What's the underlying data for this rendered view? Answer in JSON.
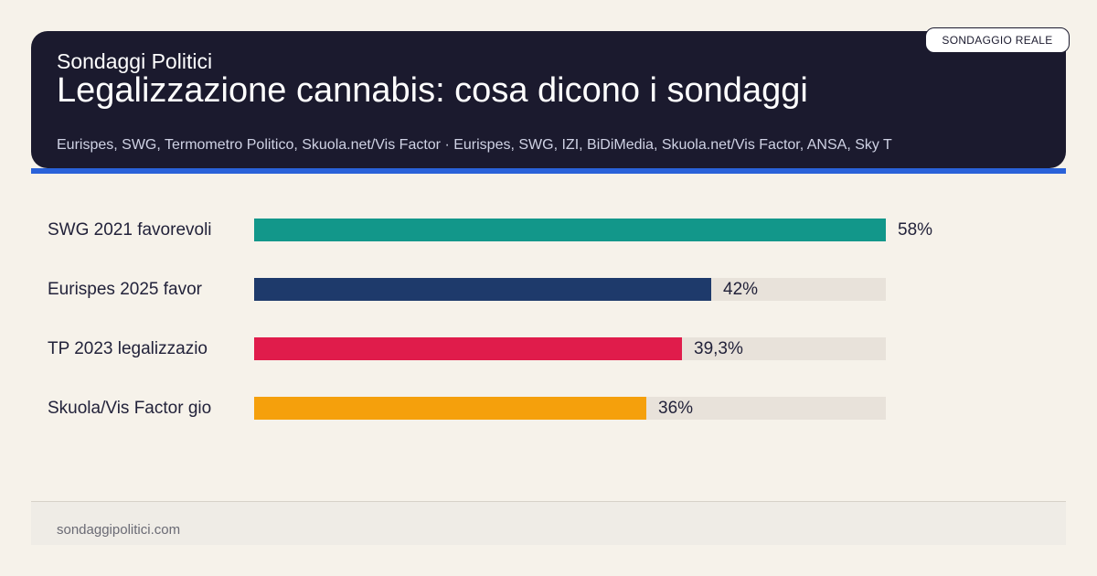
{
  "header": {
    "brand": "Sondaggi Politici",
    "title": "Legalizzazione cannabis: cosa dicono i sondaggi",
    "sources": "Eurispes, SWG, Termometro Politico, Skuola.net/Vis Factor · Eurispes, SWG, IZI, BiDiMedia, Skuola.net/Vis Factor, ANSA, Sky T",
    "badge": "SONDAGGIO REALE"
  },
  "footer": {
    "site": "sondaggipolitici.com"
  },
  "colors": {
    "header_bg": "#1b1a2e",
    "accent": "#2a62d9",
    "background": "#f6f2ea",
    "track": "#e8e2da"
  },
  "chart_data": {
    "type": "bar",
    "orientation": "horizontal",
    "categories": [
      "SWG 2021 favorevoli",
      "Eurispes 2025 favor",
      "TP 2023 legalizzazio",
      "Skuola/Vis Factor gio"
    ],
    "values": [
      58,
      42,
      39.3,
      36
    ],
    "value_labels": [
      "58%",
      "42%",
      "39,3%",
      "36%"
    ],
    "colors": [
      "#12978a",
      "#1e3a6b",
      "#e01c4b",
      "#f5a00c"
    ],
    "xlim": [
      0,
      58
    ],
    "grid": false
  }
}
